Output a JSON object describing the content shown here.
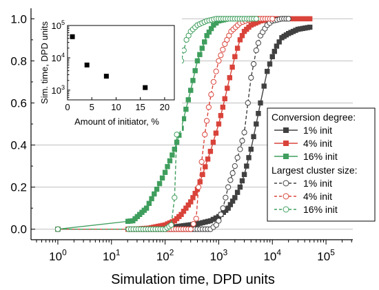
{
  "chart_data": [
    {
      "type": "line",
      "xlabel": "Simulation time, DPD units",
      "ylabel": "",
      "xscale": "log",
      "xlim": [
        0.316,
        316228
      ],
      "ylim": [
        -0.05,
        1.05
      ],
      "grid": "horizontal",
      "x_ticks": [
        "10^0",
        "10^1",
        "10^2",
        "10^3",
        "10^4",
        "10^5"
      ],
      "y_ticks": [
        "0.0",
        "0.2",
        "0.4",
        "0.6",
        "0.8",
        "1.0"
      ],
      "legend_position": "center-right",
      "legend": {
        "group1_title": "Conversion degree:",
        "group2_title": "Largest cluster size:"
      },
      "series": [
        {
          "name": "1% init",
          "group": "Conversion degree",
          "color": "#404040",
          "marker": "square-filled",
          "line": "solid",
          "points": [
            [
              1,
              0.0
            ],
            [
              50,
              0.0
            ],
            [
              100,
              0.005
            ],
            [
              200,
              0.015
            ],
            [
              400,
              0.025
            ],
            [
              700,
              0.04
            ],
            [
              1000,
              0.06
            ],
            [
              1500,
              0.1
            ],
            [
              2000,
              0.15
            ],
            [
              2500,
              0.2
            ],
            [
              3000,
              0.26
            ],
            [
              4000,
              0.38
            ],
            [
              5000,
              0.5
            ],
            [
              6000,
              0.6
            ],
            [
              7000,
              0.68
            ],
            [
              8000,
              0.75
            ],
            [
              10000,
              0.82
            ],
            [
              12000,
              0.87
            ],
            [
              15000,
              0.91
            ],
            [
              20000,
              0.93
            ],
            [
              30000,
              0.95
            ],
            [
              50000,
              0.96
            ]
          ]
        },
        {
          "name": "4% init",
          "group": "Conversion degree",
          "color": "#d9433a",
          "marker": "square-filled",
          "line": "solid",
          "points": [
            [
              1,
              0.0
            ],
            [
              25,
              0.0
            ],
            [
              50,
              0.005
            ],
            [
              100,
              0.02
            ],
            [
              150,
              0.04
            ],
            [
              200,
              0.07
            ],
            [
              300,
              0.13
            ],
            [
              400,
              0.19
            ],
            [
              500,
              0.26
            ],
            [
              700,
              0.37
            ],
            [
              1000,
              0.5
            ],
            [
              1300,
              0.62
            ],
            [
              1600,
              0.72
            ],
            [
              2000,
              0.82
            ],
            [
              2500,
              0.9
            ],
            [
              3000,
              0.94
            ],
            [
              4000,
              0.97
            ],
            [
              6000,
              0.99
            ],
            [
              10000,
              1.0
            ],
            [
              20000,
              1.0
            ],
            [
              50000,
              1.0
            ]
          ]
        },
        {
          "name": "16% init",
          "group": "Conversion degree",
          "color": "#3f9e5d",
          "marker": "square-filled",
          "line": "solid",
          "points": [
            [
              1,
              0.0
            ],
            [
              25,
              0.04
            ],
            [
              45,
              0.1
            ],
            [
              70,
              0.19
            ],
            [
              100,
              0.27
            ],
            [
              150,
              0.38
            ],
            [
              200,
              0.48
            ],
            [
              300,
              0.66
            ],
            [
              400,
              0.8
            ],
            [
              600,
              0.92
            ],
            [
              800,
              0.97
            ],
            [
              1000,
              0.99
            ],
            [
              1500,
              1.0
            ],
            [
              3000,
              1.0
            ],
            [
              5000,
              1.0
            ]
          ]
        },
        {
          "name": "1% init",
          "group": "Largest cluster size",
          "color": "#404040",
          "marker": "circle-open",
          "line": "dashed",
          "points": [
            [
              1,
              0.0
            ],
            [
              400,
              0.0
            ],
            [
              700,
              0.0
            ],
            [
              900,
              0.02
            ],
            [
              1000,
              0.04
            ],
            [
              1200,
              0.1
            ],
            [
              1500,
              0.2
            ],
            [
              2000,
              0.3
            ],
            [
              2500,
              0.38
            ],
            [
              3000,
              0.46
            ],
            [
              3500,
              0.6
            ],
            [
              4000,
              0.72
            ],
            [
              5000,
              0.85
            ],
            [
              6000,
              0.92
            ],
            [
              8000,
              0.97
            ],
            [
              10000,
              0.99
            ],
            [
              15000,
              1.0
            ],
            [
              20000,
              1.0
            ]
          ]
        },
        {
          "name": "4% init",
          "group": "Largest cluster size",
          "color": "#d9433a",
          "marker": "circle-open",
          "line": "dashed",
          "points": [
            [
              1,
              0.0
            ],
            [
              300,
              0.0
            ],
            [
              380,
              0.05
            ],
            [
              420,
              0.2
            ],
            [
              480,
              0.32
            ],
            [
              550,
              0.45
            ],
            [
              650,
              0.58
            ],
            [
              800,
              0.7
            ],
            [
              1000,
              0.8
            ],
            [
              1300,
              0.88
            ],
            [
              1700,
              0.94
            ],
            [
              2500,
              0.98
            ],
            [
              4000,
              1.0
            ],
            [
              10000,
              1.0
            ]
          ]
        },
        {
          "name": "16% init",
          "group": "Largest cluster size",
          "color": "#3f9e5d",
          "marker": "circle-open",
          "line": "dashed",
          "points": [
            [
              1,
              0.0
            ],
            [
              100,
              0.0
            ],
            [
              130,
              0.02
            ],
            [
              150,
              0.15
            ],
            [
              165,
              0.45
            ],
            [
              180,
              0.65
            ],
            [
              200,
              0.8
            ],
            [
              250,
              0.9
            ],
            [
              300,
              0.94
            ],
            [
              400,
              0.97
            ],
            [
              600,
              0.99
            ],
            [
              900,
              1.0
            ],
            [
              2000,
              1.0
            ],
            [
              5000,
              1.0
            ]
          ]
        }
      ]
    },
    {
      "type": "scatter",
      "inset": true,
      "xlabel": "Amount of initiator, %",
      "ylabel": "Sim. time, DPD units",
      "xlim": [
        0,
        22
      ],
      "ylim": [
        500,
        100000
      ],
      "yscale": "log",
      "x_ticks": [
        "0",
        "5",
        "10",
        "15",
        "20"
      ],
      "y_ticks": [
        "10^3",
        "10^4",
        "10^5"
      ],
      "marker": "square-filled",
      "color": "#000000",
      "points": [
        [
          1,
          45000
        ],
        [
          4,
          6000
        ],
        [
          8,
          2700
        ],
        [
          16,
          1200
        ]
      ]
    }
  ]
}
